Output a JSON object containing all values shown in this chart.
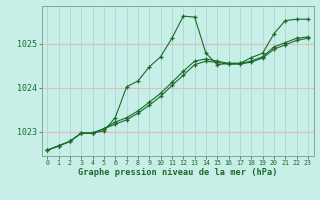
{
  "title": "Graphe pression niveau de la mer (hPa)",
  "bg_color": "#c8eee8",
  "grid_color_h": "#e8b8b8",
  "grid_color_v": "#a8d8d0",
  "line_color": "#1a6b2a",
  "xlim": [
    -0.5,
    23.5
  ],
  "ylim": [
    1022.45,
    1025.85
  ],
  "yticks": [
    1023,
    1024,
    1025
  ],
  "xticks": [
    0,
    1,
    2,
    3,
    4,
    5,
    6,
    7,
    8,
    9,
    10,
    11,
    12,
    13,
    14,
    15,
    16,
    17,
    18,
    19,
    20,
    21,
    22,
    23
  ],
  "series": [
    [
      1022.58,
      1022.68,
      1022.78,
      1022.97,
      1022.97,
      1023.02,
      1023.32,
      1024.02,
      1024.15,
      1024.47,
      1024.7,
      1025.12,
      1025.62,
      1025.6,
      1024.78,
      1024.52,
      1024.55,
      1024.55,
      1024.68,
      1024.78,
      1025.22,
      1025.52,
      1025.55,
      1025.55
    ],
    [
      1022.58,
      1022.68,
      1022.78,
      1022.97,
      1022.97,
      1023.07,
      1023.22,
      1023.32,
      1023.47,
      1023.67,
      1023.87,
      1024.12,
      1024.37,
      1024.6,
      1024.65,
      1024.6,
      1024.55,
      1024.55,
      1024.6,
      1024.7,
      1024.92,
      1025.02,
      1025.12,
      1025.15
    ],
    [
      1022.58,
      1022.68,
      1022.78,
      1022.97,
      1022.97,
      1023.07,
      1023.17,
      1023.27,
      1023.42,
      1023.6,
      1023.8,
      1024.05,
      1024.28,
      1024.52,
      1024.6,
      1024.57,
      1024.53,
      1024.53,
      1024.58,
      1024.67,
      1024.87,
      1024.97,
      1025.07,
      1025.12
    ]
  ]
}
